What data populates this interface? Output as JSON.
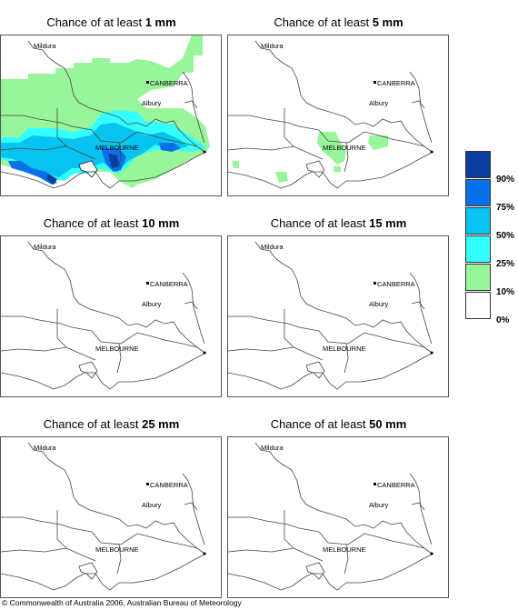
{
  "panels": [
    {
      "title_prefix": "Chance of at least ",
      "title_value": "1 mm"
    },
    {
      "title_prefix": "Chance of at least ",
      "title_value": "5 mm"
    },
    {
      "title_prefix": "Chance of at least ",
      "title_value": "10 mm"
    },
    {
      "title_prefix": "Chance of at least ",
      "title_value": "15 mm"
    },
    {
      "title_prefix": "Chance of at least ",
      "title_value": "25 mm"
    },
    {
      "title_prefix": "Chance of at least ",
      "title_value": "50 mm"
    }
  ],
  "cities": {
    "mildura": "Mildura",
    "canberra": "CANBERRA",
    "albury": "Albury",
    "melbourne": "MELBOURNE"
  },
  "legend": {
    "labels": [
      "90%",
      "75%",
      "50%",
      "25%",
      "10%",
      "0%"
    ],
    "colors": [
      "#0a3ea0",
      "#0a70e8",
      "#06c3f0",
      "#33ffff",
      "#99f59a",
      "#ffffff"
    ]
  },
  "copyright": "© Commonwealth of Australia 2006, Australian Bureau of Meteorology"
}
